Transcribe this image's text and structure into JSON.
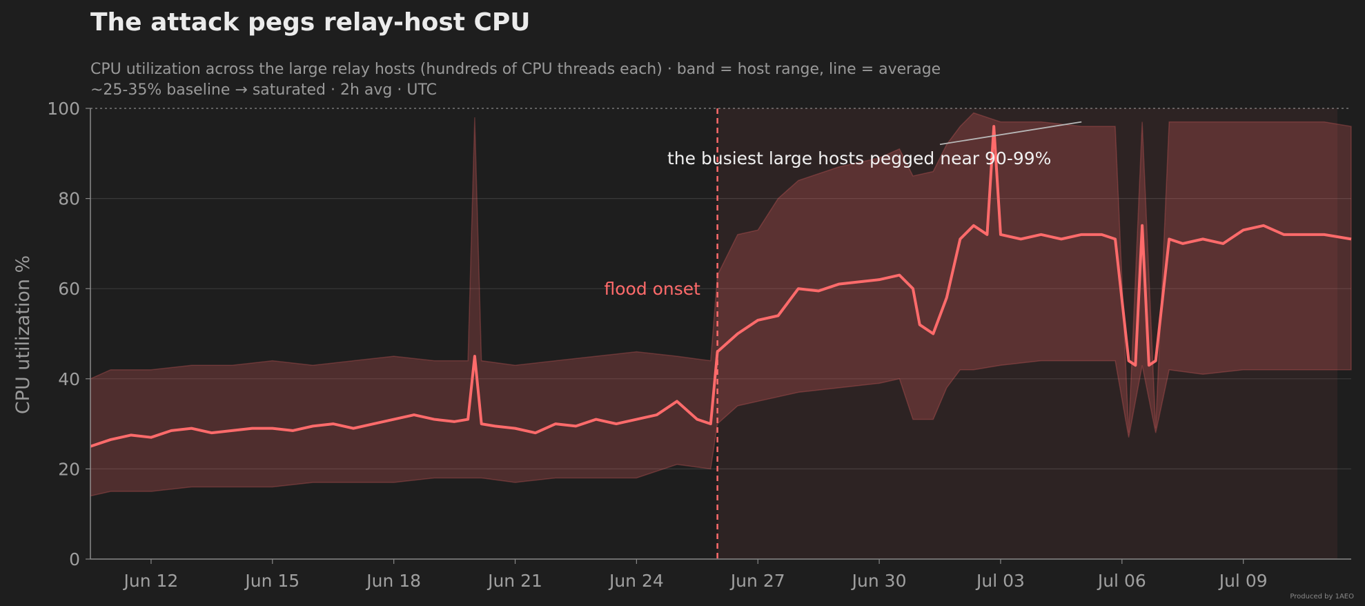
{
  "chart_data": {
    "type": "area",
    "title": "The attack pegs relay-host CPU",
    "subtitle_lines": [
      "CPU utilization across the large relay hosts (hundreds of CPU threads each) · band = host range, line = average",
      "~25-35% baseline → saturated · 2h avg · UTC"
    ],
    "xlabel": "",
    "ylabel": "CPU utilization %",
    "xlim": [
      "2026-06-10T12:00",
      "2026-07-11T16:00"
    ],
    "ylim": [
      0,
      100
    ],
    "yticks": [
      0,
      20,
      40,
      60,
      80,
      100
    ],
    "xtick_labels": [
      {
        "date": "2026-06-12",
        "label": "Jun 12"
      },
      {
        "date": "2026-06-15",
        "label": "Jun 15"
      },
      {
        "date": "2026-06-18",
        "label": "Jun 18"
      },
      {
        "date": "2026-06-21",
        "label": "Jun 21"
      },
      {
        "date": "2026-06-24",
        "label": "Jun 24"
      },
      {
        "date": "2026-06-27",
        "label": "Jun 27"
      },
      {
        "date": "2026-06-30",
        "label": "Jun 30"
      },
      {
        "date": "2026-07-03",
        "label": "Jul 03"
      },
      {
        "date": "2026-07-06",
        "label": "Jul 06"
      },
      {
        "date": "2026-07-09",
        "label": "Jul 09"
      }
    ],
    "grid": "horizontal",
    "series": [
      {
        "role": "host range band",
        "color": "#ff6b6b",
        "points": [
          [
            "2026-06-10T12:00",
            14,
            40
          ],
          [
            "2026-06-11T00:00",
            15,
            42
          ],
          [
            "2026-06-12T00:00",
            15,
            42
          ],
          [
            "2026-06-13T00:00",
            16,
            43
          ],
          [
            "2026-06-14T00:00",
            16,
            43
          ],
          [
            "2026-06-15T00:00",
            16,
            44
          ],
          [
            "2026-06-16T00:00",
            17,
            43
          ],
          [
            "2026-06-17T00:00",
            17,
            44
          ],
          [
            "2026-06-18T00:00",
            17,
            45
          ],
          [
            "2026-06-19T00:00",
            18,
            44
          ],
          [
            "2026-06-19T20:00",
            18,
            44
          ],
          [
            "2026-06-20T00:00",
            18,
            98
          ],
          [
            "2026-06-20T04:00",
            18,
            44
          ],
          [
            "2026-06-21T00:00",
            17,
            43
          ],
          [
            "2026-06-22T00:00",
            18,
            44
          ],
          [
            "2026-06-23T00:00",
            18,
            45
          ],
          [
            "2026-06-24T00:00",
            18,
            46
          ],
          [
            "2026-06-25T00:00",
            21,
            45
          ],
          [
            "2026-06-25T20:00",
            20,
            44
          ],
          [
            "2026-06-26T00:00",
            30,
            63
          ],
          [
            "2026-06-26T12:00",
            34,
            72
          ],
          [
            "2026-06-27T00:00",
            35,
            73
          ],
          [
            "2026-06-27T12:00",
            36,
            80
          ],
          [
            "2026-06-28T00:00",
            37,
            84
          ],
          [
            "2026-06-29T00:00",
            38,
            87
          ],
          [
            "2026-06-30T00:00",
            39,
            89
          ],
          [
            "2026-06-30T12:00",
            40,
            91
          ],
          [
            "2026-06-30T20:00",
            31,
            85
          ],
          [
            "2026-07-01T08:00",
            31,
            86
          ],
          [
            "2026-07-01T16:00",
            38,
            92
          ],
          [
            "2026-07-02T00:00",
            42,
            96
          ],
          [
            "2026-07-02T08:00",
            42,
            99
          ],
          [
            "2026-07-03T00:00",
            43,
            97
          ],
          [
            "2026-07-04T00:00",
            44,
            97
          ],
          [
            "2026-07-05T00:00",
            44,
            96
          ],
          [
            "2026-07-05T20:00",
            44,
            96
          ],
          [
            "2026-07-06T04:00",
            27,
            28
          ],
          [
            "2026-07-06T12:00",
            43,
            97
          ],
          [
            "2026-07-06T20:00",
            28,
            29
          ],
          [
            "2026-07-07T04:00",
            42,
            97
          ],
          [
            "2026-07-08T00:00",
            41,
            97
          ],
          [
            "2026-07-09T00:00",
            42,
            97
          ],
          [
            "2026-07-10T00:00",
            42,
            97
          ],
          [
            "2026-07-11T00:00",
            42,
            97
          ],
          [
            "2026-07-11T16:00",
            42,
            96
          ]
        ]
      },
      {
        "role": "average",
        "color": "#ff6b6b",
        "points": [
          [
            "2026-06-10T12:00",
            25
          ],
          [
            "2026-06-11T00:00",
            26.5
          ],
          [
            "2026-06-11T12:00",
            27.5
          ],
          [
            "2026-06-12T00:00",
            27
          ],
          [
            "2026-06-12T12:00",
            28.5
          ],
          [
            "2026-06-13T00:00",
            29
          ],
          [
            "2026-06-13T12:00",
            28
          ],
          [
            "2026-06-14T00:00",
            28.5
          ],
          [
            "2026-06-14T12:00",
            29
          ],
          [
            "2026-06-15T00:00",
            29
          ],
          [
            "2026-06-15T12:00",
            28.5
          ],
          [
            "2026-06-16T00:00",
            29.5
          ],
          [
            "2026-06-16T12:00",
            30
          ],
          [
            "2026-06-17T00:00",
            29
          ],
          [
            "2026-06-17T12:00",
            30
          ],
          [
            "2026-06-18T00:00",
            31
          ],
          [
            "2026-06-18T12:00",
            32
          ],
          [
            "2026-06-19T00:00",
            31
          ],
          [
            "2026-06-19T12:00",
            30.5
          ],
          [
            "2026-06-19T20:00",
            31
          ],
          [
            "2026-06-20T00:00",
            45
          ],
          [
            "2026-06-20T04:00",
            30
          ],
          [
            "2026-06-20T12:00",
            29.5
          ],
          [
            "2026-06-21T00:00",
            29
          ],
          [
            "2026-06-21T12:00",
            28
          ],
          [
            "2026-06-22T00:00",
            30
          ],
          [
            "2026-06-22T12:00",
            29.5
          ],
          [
            "2026-06-23T00:00",
            31
          ],
          [
            "2026-06-23T12:00",
            30
          ],
          [
            "2026-06-24T00:00",
            31
          ],
          [
            "2026-06-24T12:00",
            32
          ],
          [
            "2026-06-25T00:00",
            35
          ],
          [
            "2026-06-25T12:00",
            31
          ],
          [
            "2026-06-25T20:00",
            30
          ],
          [
            "2026-06-26T00:00",
            46
          ],
          [
            "2026-06-26T12:00",
            50
          ],
          [
            "2026-06-27T00:00",
            53
          ],
          [
            "2026-06-27T12:00",
            54
          ],
          [
            "2026-06-28T00:00",
            60
          ],
          [
            "2026-06-28T12:00",
            59.5
          ],
          [
            "2026-06-29T00:00",
            61
          ],
          [
            "2026-06-29T12:00",
            61.5
          ],
          [
            "2026-06-30T00:00",
            62
          ],
          [
            "2026-06-30T12:00",
            63
          ],
          [
            "2026-06-30T20:00",
            60
          ],
          [
            "2026-07-01T00:00",
            52
          ],
          [
            "2026-07-01T08:00",
            50
          ],
          [
            "2026-07-01T16:00",
            58
          ],
          [
            "2026-07-02T00:00",
            71
          ],
          [
            "2026-07-02T08:00",
            74
          ],
          [
            "2026-07-02T16:00",
            72
          ],
          [
            "2026-07-02T20:00",
            96
          ],
          [
            "2026-07-03T00:00",
            72
          ],
          [
            "2026-07-03T12:00",
            71
          ],
          [
            "2026-07-04T00:00",
            72
          ],
          [
            "2026-07-04T12:00",
            71
          ],
          [
            "2026-07-05T00:00",
            72
          ],
          [
            "2026-07-05T12:00",
            72
          ],
          [
            "2026-07-05T20:00",
            71
          ],
          [
            "2026-07-06T04:00",
            44
          ],
          [
            "2026-07-06T08:00",
            43
          ],
          [
            "2026-07-06T12:00",
            74
          ],
          [
            "2026-07-06T16:00",
            43
          ],
          [
            "2026-07-06T20:00",
            44
          ],
          [
            "2026-07-07T04:00",
            71
          ],
          [
            "2026-07-07T12:00",
            70
          ],
          [
            "2026-07-08T00:00",
            71
          ],
          [
            "2026-07-08T12:00",
            70
          ],
          [
            "2026-07-09T00:00",
            73
          ],
          [
            "2026-07-09T12:00",
            74
          ],
          [
            "2026-07-10T00:00",
            72
          ],
          [
            "2026-07-10T12:00",
            72
          ],
          [
            "2026-07-11T00:00",
            72
          ],
          [
            "2026-07-11T16:00",
            71
          ]
        ]
      }
    ],
    "annotations": [
      {
        "text": "flood onset",
        "x": "2026-06-26T00:00",
        "color": "#ff6b6b",
        "style": "dashed vertical line"
      },
      {
        "text": "the busiest large hosts pegged near 90-99%",
        "color": "#f0f0f0",
        "arrow_from": [
          "2026-07-01T12:00",
          92
        ],
        "arrow_to": [
          "2026-07-05T00:00",
          97
        ]
      }
    ],
    "credit": "Produced by 1AEO"
  }
}
